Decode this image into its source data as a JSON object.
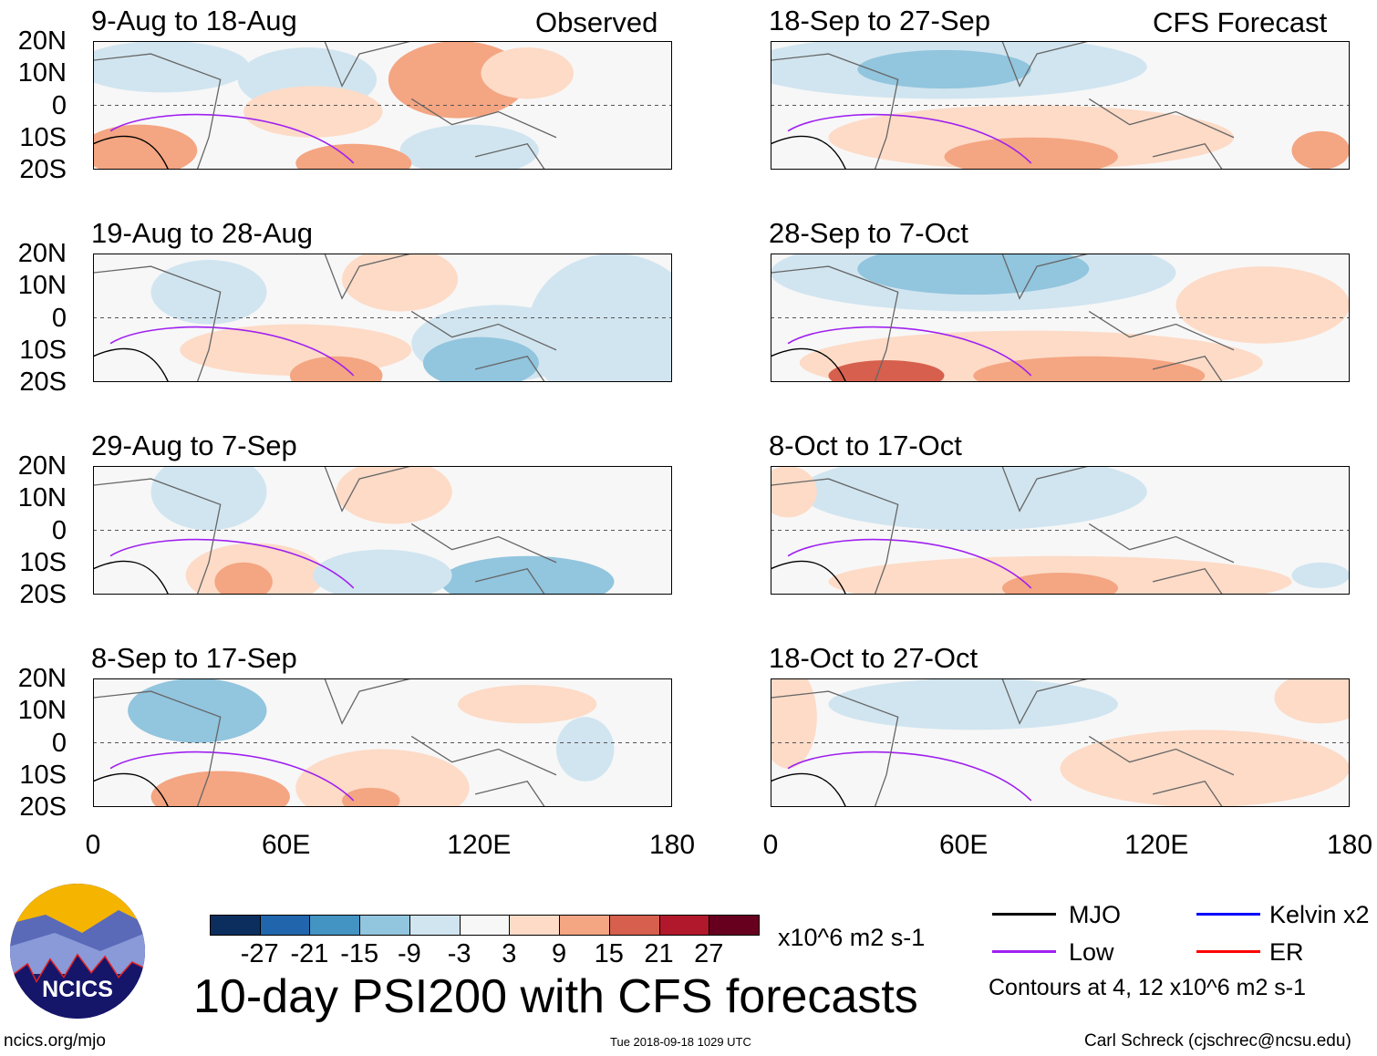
{
  "header": {
    "left_label": "Observed",
    "right_label": "CFS Forecast"
  },
  "panels": [
    {
      "title": "9-Aug to 18-Aug",
      "group": "observed"
    },
    {
      "title": "19-Aug to 28-Aug",
      "group": "observed"
    },
    {
      "title": "29-Aug to 7-Sep",
      "group": "observed"
    },
    {
      "title": "8-Sep to 17-Sep",
      "group": "observed"
    },
    {
      "title": "18-Sep to 27-Sep",
      "group": "forecast"
    },
    {
      "title": "28-Sep to 7-Oct",
      "group": "forecast"
    },
    {
      "title": "8-Oct to 17-Oct",
      "group": "forecast"
    },
    {
      "title": "18-Oct to 27-Oct",
      "group": "forecast"
    }
  ],
  "lat_labels": [
    "20N",
    "10N",
    "0",
    "10S",
    "20S"
  ],
  "lon_labels": [
    "0",
    "60E",
    "120E",
    "180"
  ],
  "colorbar": {
    "colors": [
      "#0b2e5e",
      "#2166ac",
      "#4393c3",
      "#92c5de",
      "#d1e5f0",
      "#f7f7f7",
      "#fddbc7",
      "#f4a582",
      "#d6604d",
      "#b2182b",
      "#67001f"
    ],
    "ticks": [
      "-27",
      "-21",
      "-15",
      "-9",
      "-3",
      "3",
      "9",
      "15",
      "21",
      "27"
    ],
    "units": "x10^6 m2 s-1"
  },
  "title": "10-day PSI200 with CFS forecasts",
  "legend": {
    "items": [
      {
        "label": "MJO",
        "color": "#000000"
      },
      {
        "label": "Kelvin x2",
        "color": "#0000ff"
      },
      {
        "label": "Low",
        "color": "#a020f0"
      },
      {
        "label": "ER",
        "color": "#ff0000"
      }
    ],
    "note": "Contours at 4, 12 x10^6 m2 s-1"
  },
  "logo": {
    "text": "NCICS"
  },
  "footer": {
    "url": "ncics.org/mjo",
    "timestamp": "Tue 2018-09-18 1029 UTC",
    "author": "Carl Schreck (cjschrec@ncsu.edu)"
  }
}
